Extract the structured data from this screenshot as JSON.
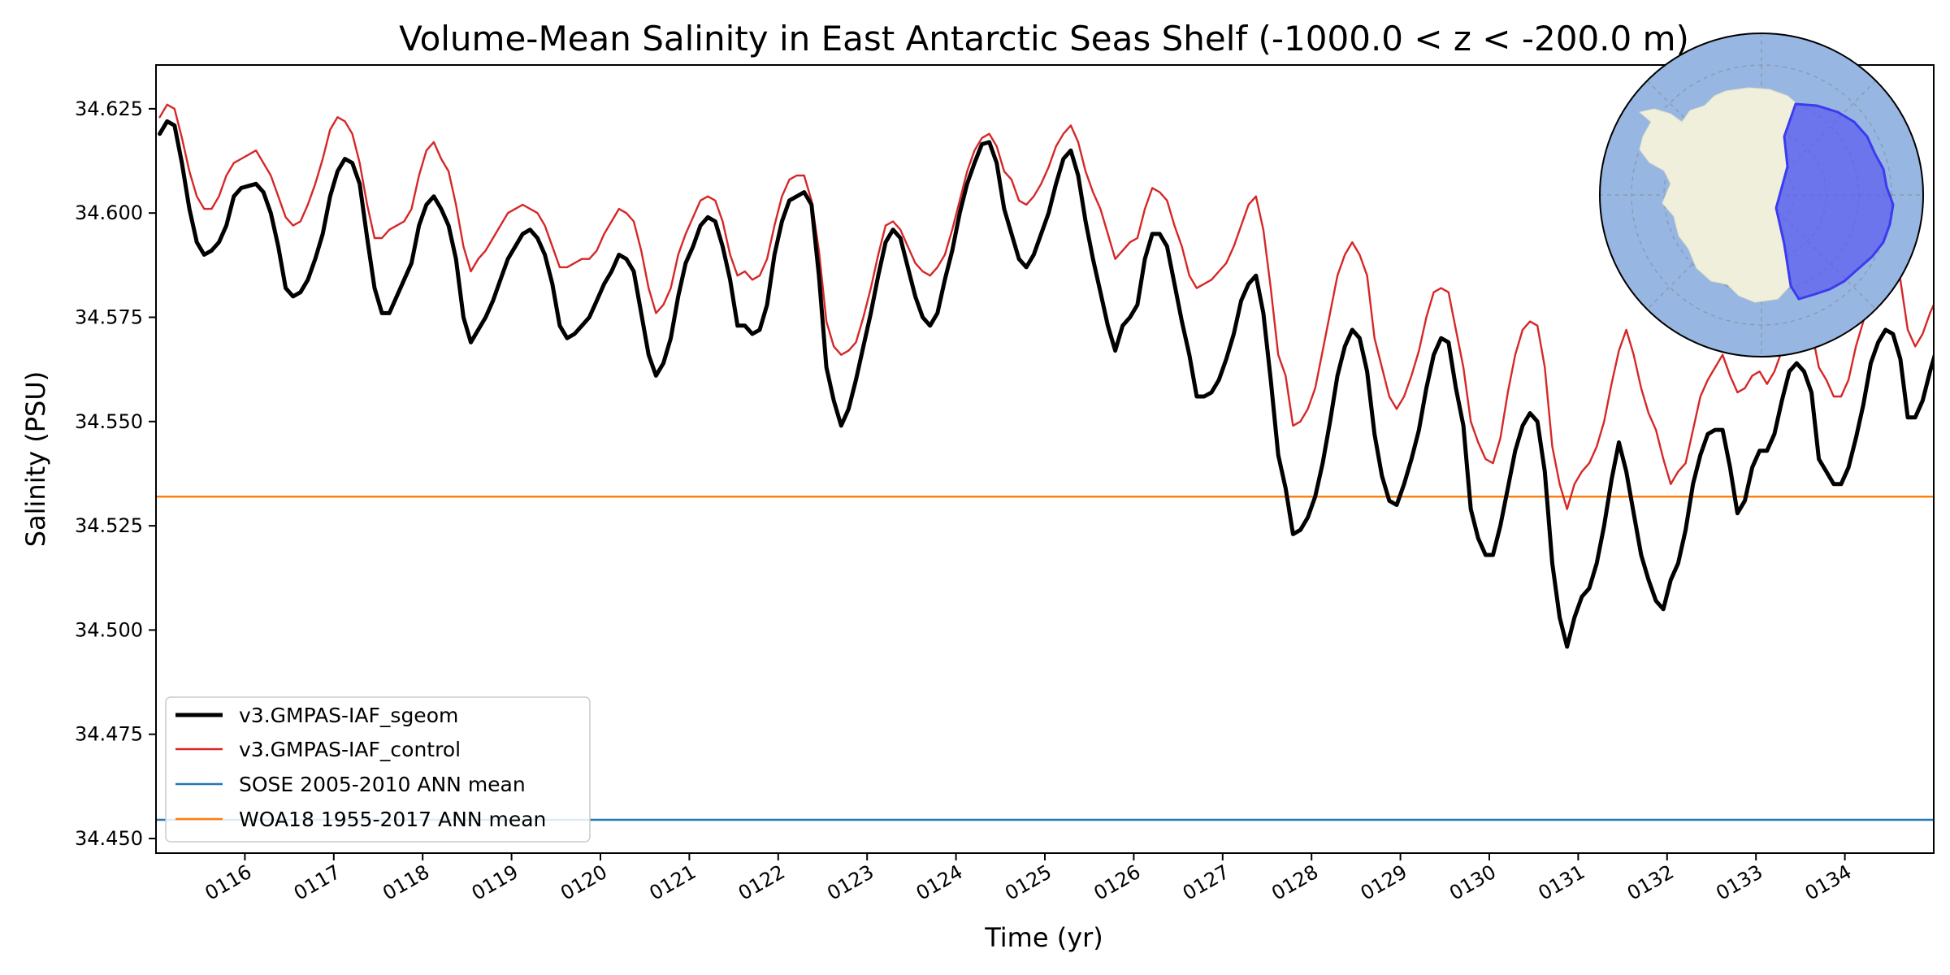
{
  "chart_data": {
    "type": "line",
    "title": "Volume-Mean Salinity in East Antarctic Seas Shelf (-1000.0 < z < -200.0 m)",
    "xlabel": "Time (yr)",
    "ylabel": "Salinity (PSU)",
    "xlim": [
      115.0,
      135.0
    ],
    "ylim": [
      34.4465,
      34.6355
    ],
    "x_ticks": [
      116,
      117,
      118,
      119,
      120,
      121,
      122,
      123,
      124,
      125,
      126,
      127,
      128,
      129,
      130,
      131,
      132,
      133,
      134
    ],
    "x_tick_labels": [
      "0116",
      "0117",
      "0118",
      "0119",
      "0120",
      "0121",
      "0122",
      "0123",
      "0124",
      "0125",
      "0126",
      "0127",
      "0128",
      "0129",
      "0130",
      "0131",
      "0132",
      "0133",
      "0134"
    ],
    "y_ticks": [
      34.45,
      34.475,
      34.5,
      34.525,
      34.55,
      34.575,
      34.6,
      34.625
    ],
    "y_tick_labels": [
      "34.450",
      "34.475",
      "34.500",
      "34.525",
      "34.550",
      "34.575",
      "34.600",
      "34.625"
    ],
    "grid": false,
    "legend_position": "lower-left",
    "series": [
      {
        "name": "v3.GMPAS-IAF_sgeom",
        "color": "#000000",
        "style": "thick",
        "x_start": 115.042,
        "x_step": 0.08333,
        "values": [
          34.619,
          34.622,
          34.621,
          34.612,
          34.601,
          34.593,
          34.59,
          34.591,
          34.593,
          34.597,
          34.604,
          34.606,
          34.6065,
          34.607,
          34.605,
          34.6,
          34.592,
          34.582,
          34.58,
          34.581,
          34.584,
          34.589,
          34.595,
          34.604,
          34.61,
          34.613,
          34.612,
          34.607,
          34.594,
          34.582,
          34.576,
          34.576,
          34.58,
          34.584,
          34.588,
          34.597,
          34.602,
          34.604,
          34.601,
          34.597,
          34.589,
          34.575,
          34.569,
          34.572,
          34.575,
          34.579,
          34.584,
          34.589,
          34.592,
          34.595,
          34.596,
          34.594,
          34.59,
          34.583,
          34.573,
          34.57,
          34.571,
          34.573,
          34.575,
          34.579,
          34.583,
          34.586,
          34.59,
          34.589,
          34.586,
          34.576,
          34.566,
          34.561,
          34.564,
          34.57,
          34.58,
          34.588,
          34.592,
          34.597,
          34.599,
          34.598,
          34.592,
          34.584,
          34.573,
          34.573,
          34.571,
          34.572,
          34.578,
          34.59,
          34.598,
          34.603,
          34.604,
          34.605,
          34.602,
          34.585,
          34.563,
          34.555,
          34.549,
          34.553,
          34.56,
          34.568,
          34.576,
          34.585,
          34.593,
          34.596,
          34.594,
          34.587,
          34.58,
          34.575,
          34.573,
          34.576,
          34.584,
          34.591,
          34.6,
          34.607,
          34.612,
          34.6165,
          34.617,
          34.612,
          34.601,
          34.595,
          34.589,
          34.587,
          34.59,
          34.595,
          34.6,
          34.607,
          34.613,
          34.615,
          34.609,
          34.598,
          34.589,
          34.581,
          34.573,
          34.567,
          34.573,
          34.575,
          34.578,
          34.589,
          34.595,
          34.595,
          34.592,
          34.583,
          34.574,
          34.566,
          34.556,
          34.556,
          34.557,
          34.56,
          34.565,
          34.571,
          34.579,
          34.583,
          34.585,
          34.576,
          34.56,
          34.542,
          34.534,
          34.523,
          34.524,
          34.527,
          34.532,
          34.54,
          34.55,
          34.561,
          34.568,
          34.572,
          34.57,
          34.562,
          34.547,
          34.537,
          34.531,
          34.53,
          34.535,
          34.541,
          34.548,
          34.558,
          34.566,
          34.57,
          34.569,
          34.558,
          34.549,
          34.529,
          34.522,
          34.518,
          34.518,
          34.525,
          34.534,
          34.543,
          34.549,
          34.552,
          34.55,
          34.538,
          34.516,
          34.503,
          34.496,
          34.503,
          34.508,
          34.51,
          34.516,
          34.525,
          34.536,
          34.545,
          34.538,
          34.528,
          34.518,
          34.512,
          34.507,
          34.505,
          34.512,
          34.516,
          34.524,
          34.535,
          34.542,
          34.547,
          34.548,
          34.548,
          34.539,
          34.528,
          34.531,
          34.539,
          34.543,
          34.543,
          34.547,
          34.555,
          34.562,
          34.564,
          34.562,
          34.557,
          34.541,
          34.538,
          34.535,
          34.535,
          34.539,
          34.546,
          34.554,
          34.564,
          34.569,
          34.572,
          34.571,
          34.565,
          34.551,
          34.551,
          34.555,
          34.562,
          34.568,
          34.575,
          34.583
        ]
      },
      {
        "name": "v3.GMPAS-IAF_control",
        "color": "#d62728",
        "style": "thin",
        "x_start": 115.042,
        "x_step": 0.08333,
        "values": [
          34.623,
          34.626,
          34.625,
          34.618,
          34.61,
          34.604,
          34.601,
          34.601,
          34.604,
          34.609,
          34.612,
          34.613,
          34.614,
          34.615,
          34.612,
          34.609,
          34.604,
          34.599,
          34.597,
          34.598,
          34.602,
          34.607,
          34.613,
          34.62,
          34.623,
          34.622,
          34.619,
          34.612,
          34.602,
          34.594,
          34.594,
          34.596,
          34.597,
          34.598,
          34.601,
          34.609,
          34.615,
          34.617,
          34.613,
          34.61,
          34.602,
          34.592,
          34.586,
          34.589,
          34.591,
          34.594,
          34.597,
          34.6,
          34.601,
          34.602,
          34.601,
          34.6,
          34.597,
          34.592,
          34.587,
          34.587,
          34.588,
          34.589,
          34.589,
          34.591,
          34.595,
          34.598,
          34.601,
          34.6,
          34.598,
          34.591,
          34.582,
          34.576,
          34.578,
          34.582,
          34.59,
          34.595,
          34.599,
          34.603,
          34.604,
          34.603,
          34.598,
          34.59,
          34.585,
          34.586,
          34.584,
          34.585,
          34.589,
          34.597,
          34.604,
          34.608,
          34.609,
          34.609,
          34.603,
          34.591,
          34.574,
          34.568,
          34.566,
          34.567,
          34.569,
          34.575,
          34.582,
          34.59,
          34.597,
          34.598,
          34.596,
          34.592,
          34.588,
          34.586,
          34.585,
          34.587,
          34.59,
          34.596,
          34.603,
          34.61,
          34.615,
          34.618,
          34.619,
          34.616,
          34.61,
          34.608,
          34.603,
          34.602,
          34.604,
          34.607,
          34.611,
          34.616,
          34.619,
          34.621,
          34.617,
          34.61,
          34.605,
          34.601,
          34.595,
          34.589,
          34.591,
          34.593,
          34.594,
          34.601,
          34.606,
          34.605,
          34.603,
          34.597,
          34.592,
          34.585,
          34.582,
          34.583,
          34.584,
          34.586,
          34.588,
          34.592,
          34.597,
          34.602,
          34.604,
          34.596,
          34.582,
          34.566,
          34.561,
          34.549,
          34.55,
          34.553,
          34.558,
          34.567,
          34.576,
          34.585,
          34.59,
          34.593,
          34.59,
          34.585,
          34.57,
          34.563,
          34.556,
          34.553,
          34.556,
          34.561,
          34.567,
          34.575,
          34.581,
          34.582,
          34.581,
          34.572,
          34.563,
          34.55,
          34.545,
          34.541,
          34.54,
          34.546,
          34.557,
          34.566,
          34.572,
          34.574,
          34.573,
          34.563,
          34.544,
          34.535,
          34.529,
          34.535,
          34.538,
          34.54,
          34.544,
          34.55,
          34.559,
          34.567,
          34.572,
          34.566,
          34.558,
          34.552,
          34.548,
          34.541,
          34.535,
          34.538,
          34.54,
          34.548,
          34.556,
          34.56,
          34.563,
          34.566,
          34.561,
          34.557,
          34.558,
          34.561,
          34.562,
          34.559,
          34.562,
          34.567,
          34.573,
          34.577,
          34.575,
          34.572,
          34.563,
          34.56,
          34.556,
          34.556,
          34.56,
          34.568,
          34.574,
          34.581,
          34.586,
          34.59,
          34.589,
          34.584,
          34.572,
          34.568,
          34.571,
          34.576,
          34.58,
          34.586,
          34.592
        ]
      },
      {
        "name": "SOSE 2005-2010 ANN mean",
        "color": "#1f77b4",
        "style": "hline",
        "value": 34.4545
      },
      {
        "name": "WOA18 1955-2017 ANN mean",
        "color": "#ff7f0e",
        "style": "hline",
        "value": 34.532
      }
    ],
    "inset_map": {
      "ocean_color": "#97b6e1",
      "land_color": "#efefdb",
      "region_color": "#5b5bf0"
    }
  }
}
